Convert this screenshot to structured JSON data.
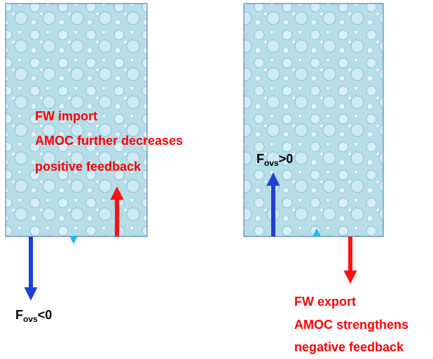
{
  "left": {
    "annotations": [
      "FW import",
      "AMOC further decreases",
      "positive feedback"
    ],
    "flux_label": {
      "base": "F",
      "sub": "ovs",
      "rest": "<0"
    }
  },
  "right": {
    "annotations": [
      "FW export",
      "AMOC strengthens",
      "negative feedback"
    ],
    "flux_label": {
      "base": "F",
      "sub": "ovs",
      "rest": ">0"
    }
  }
}
